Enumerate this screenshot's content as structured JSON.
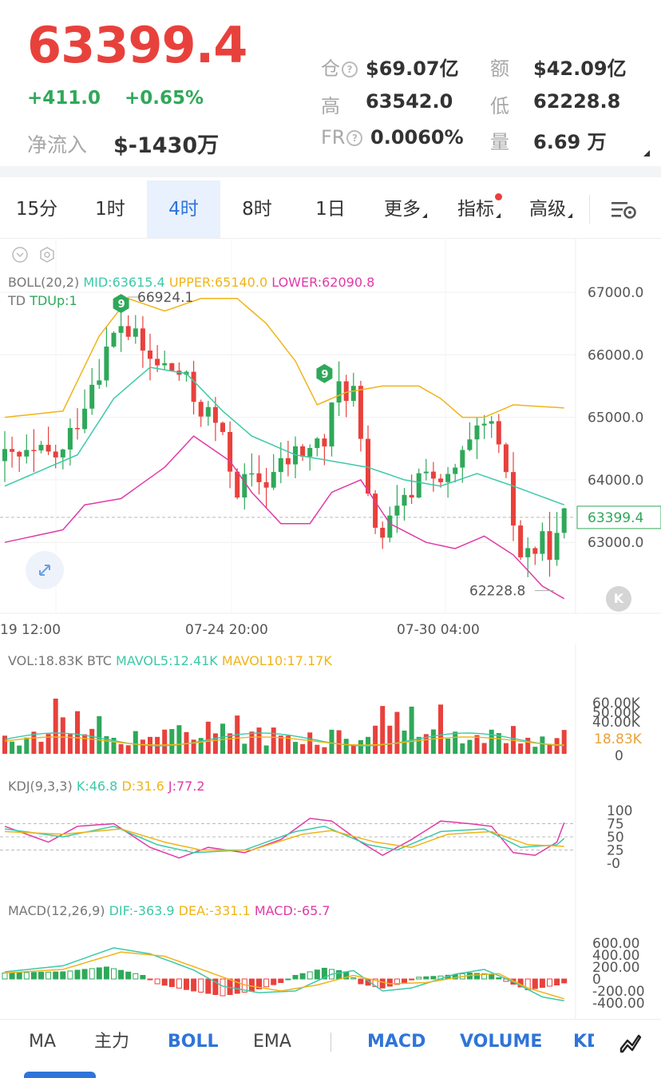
{
  "header": {
    "price": "63399.4",
    "change": "+411.0",
    "change_pct": "+0.65%",
    "netflow_label": "净流入",
    "netflow_value": "$-1430万",
    "stats": {
      "oi_label": "仓",
      "oi_value": "$69.07亿",
      "turnover_label": "额",
      "turnover_value": "$42.09亿",
      "high_label": "高",
      "high_value": "63542.0",
      "low_label": "低",
      "low_value": "62228.8",
      "fr_label": "FR",
      "fr_value": "0.0060%",
      "vol_label": "量",
      "vol_value": "6.69 万"
    }
  },
  "tabs": [
    "15分",
    "1时",
    "4时",
    "8时",
    "1日",
    "更多",
    "指标",
    "高级"
  ],
  "active_tab": "4时",
  "boll": {
    "title": "BOLL(20,2)",
    "mid": "MID:63615.4",
    "upper": "UPPER:65140.0",
    "lower": "LOWER:62090.8",
    "td": "TD",
    "tdup": "TDUp:1",
    "max_label": "66924.1",
    "min_label": "62228.8",
    "td_mark": "9",
    "y_ticks": [
      "67000.0",
      "66000.0",
      "65000.0",
      "64000.0",
      "63000.0"
    ],
    "last_price": "63399.4",
    "x_ticks": [
      "19 12:00",
      "07-24 20:00",
      "07-30 04:00"
    ]
  },
  "vol": {
    "title": "VOL:18.83K BTC",
    "mavol5": "MAVOL5:12.41K",
    "mavol10": "MAVOL10:17.17K",
    "y_ticks": [
      "60.00K",
      "50.00K",
      "40.00K",
      "0"
    ],
    "last": "18.83K"
  },
  "kdj": {
    "title": "KDJ(9,3,3)",
    "k": "K:46.8",
    "d": "D:31.6",
    "j": "J:77.2",
    "y_ticks": [
      "100",
      "75",
      "50",
      "25",
      "-0"
    ]
  },
  "macd": {
    "title": "MACD(12,26,9)",
    "dif": "DIF:-363.9",
    "dea": "DEA:-331.1",
    "macd": "MACD:-65.7",
    "y_ticks": [
      "600.00",
      "400.00",
      "200.00",
      "0",
      "-200.00",
      "-400.00"
    ]
  },
  "bottom_tabs": [
    "MA",
    "主力",
    "BOLL",
    "EMA",
    "MACD",
    "VOLUME",
    "KD"
  ],
  "colors": {
    "up": "#2fa85a",
    "down": "#e8413c",
    "mid": "#3cc9a8",
    "upper": "#f0b418",
    "lower": "#e03aa6",
    "blue": "#2f74d9"
  }
}
